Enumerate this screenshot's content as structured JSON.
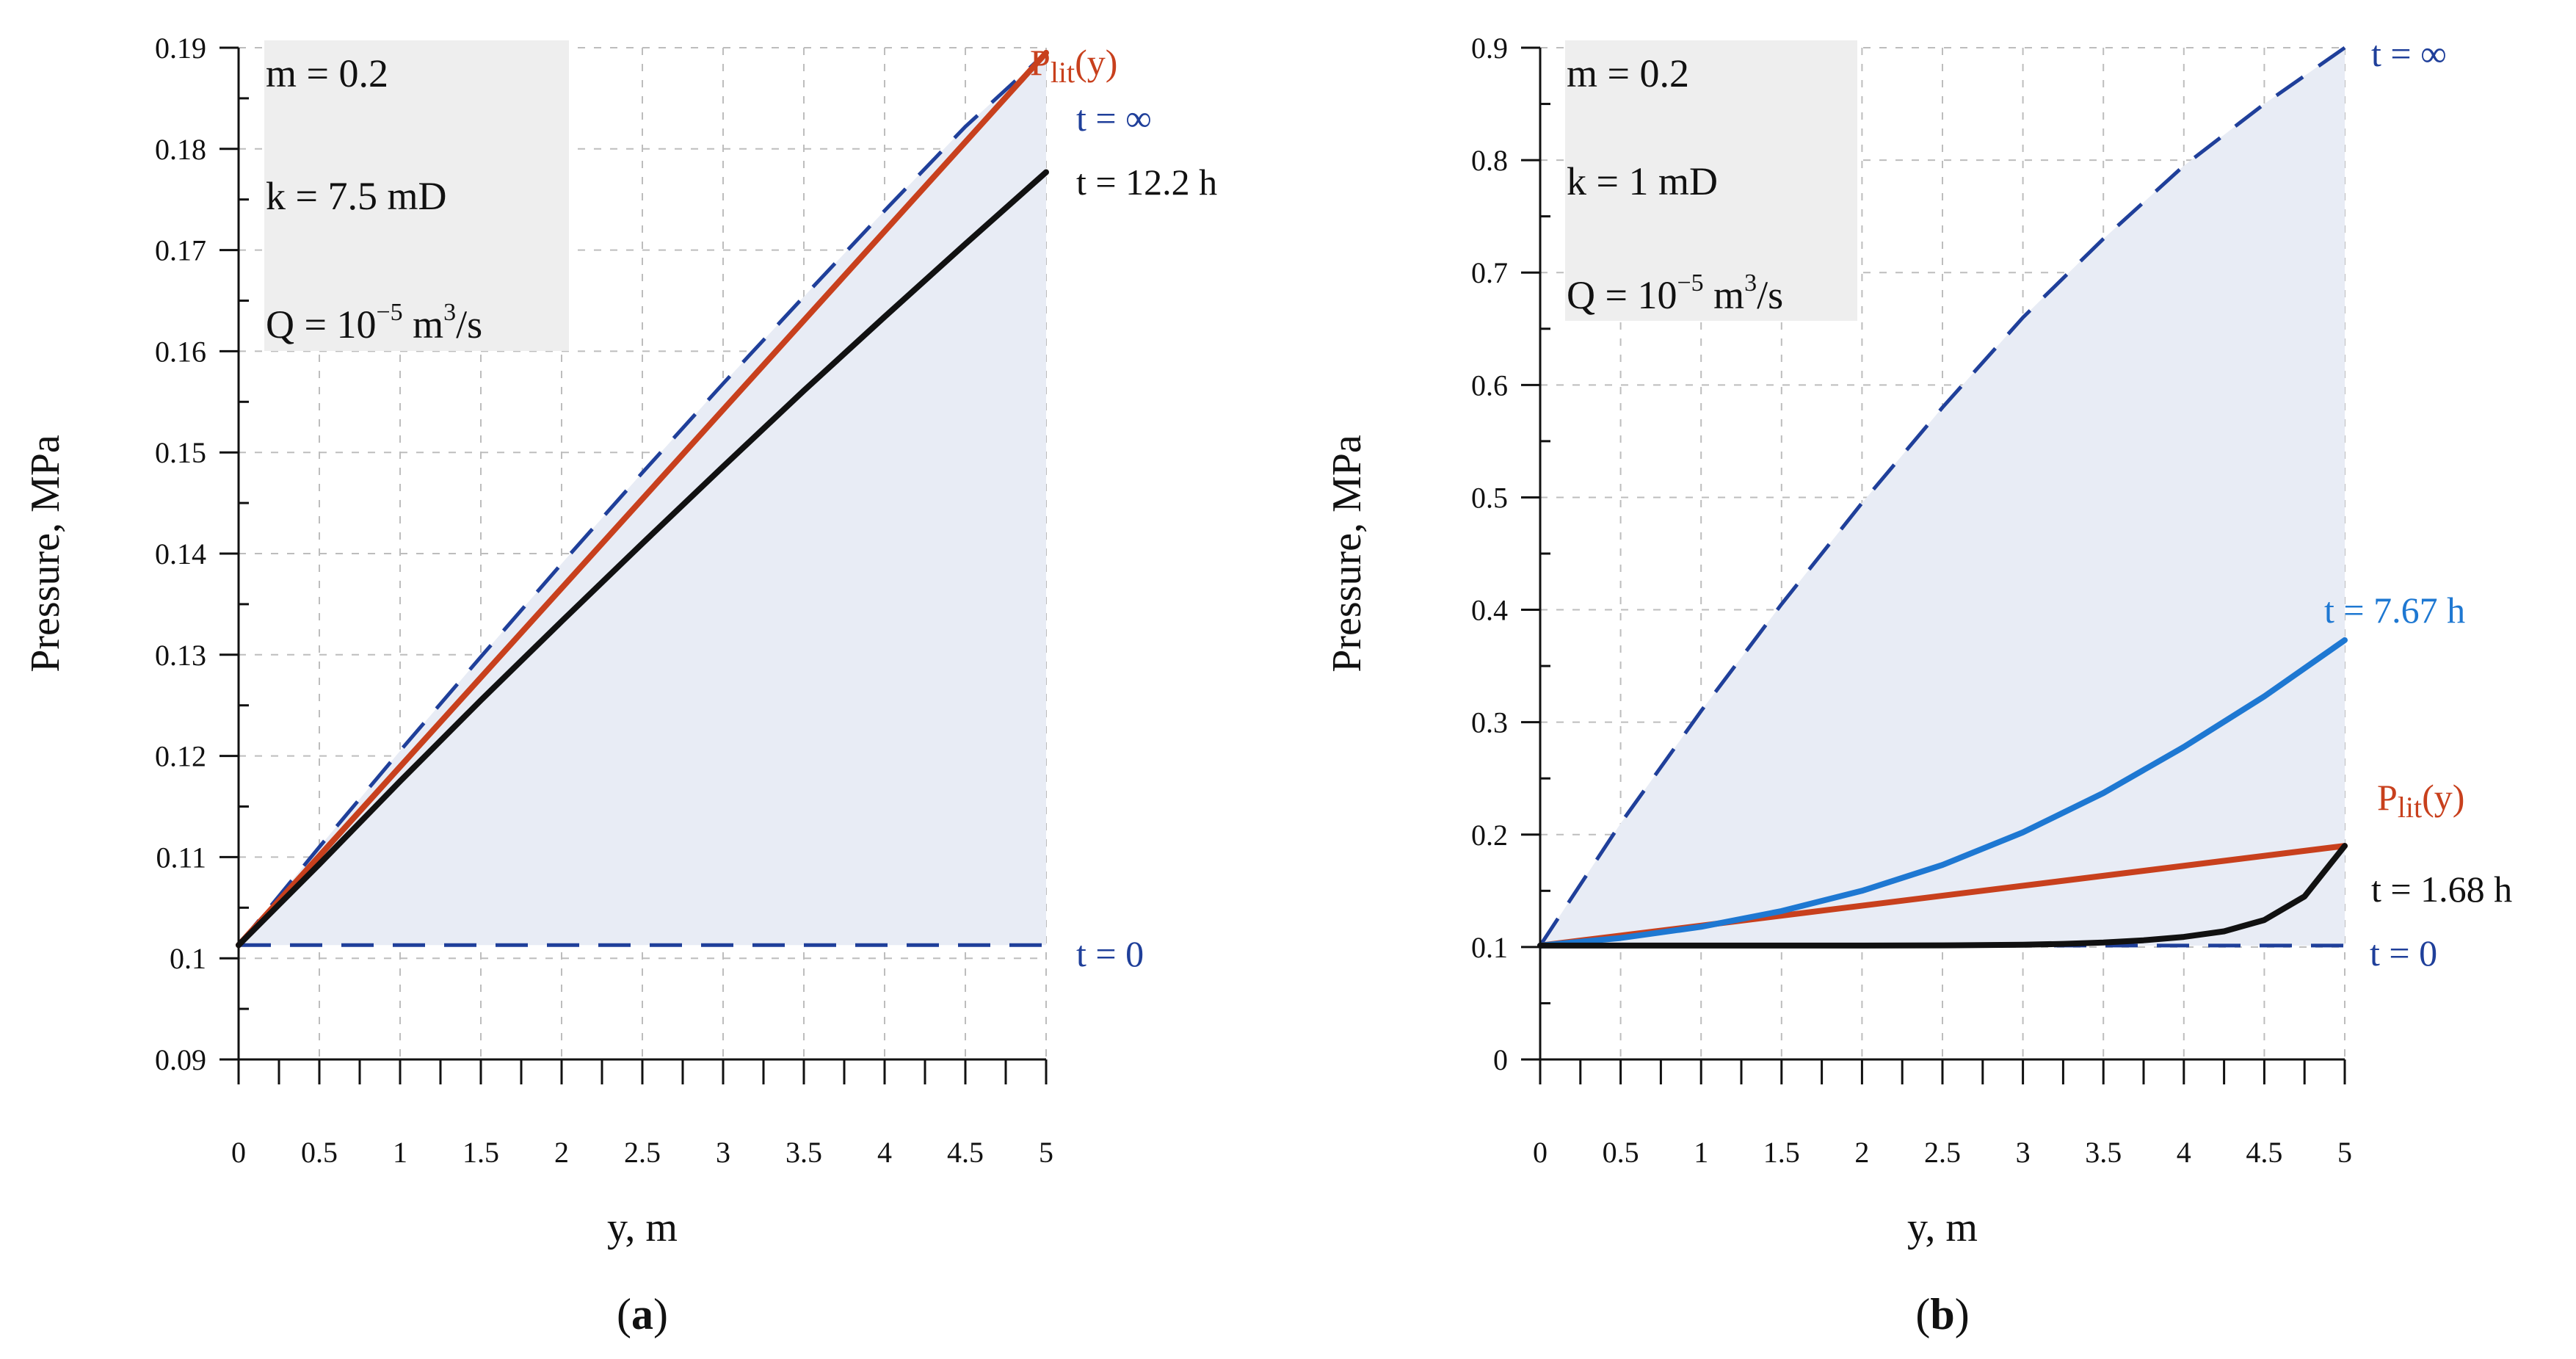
{
  "colors": {
    "t_zero": "#1f3f9a",
    "t_inf": "#1f3f9a",
    "p_lit": "#c8401d",
    "black": "#111111",
    "t_mid_b": "#1e78d2",
    "band": "#e8ecf5",
    "param_box": "#eeeeee",
    "grid": "#bdbdbd"
  },
  "chart_data": [
    {
      "type": "line",
      "panel": "a",
      "panel_label": {
        "open": "(",
        "letter": "a",
        "close": ")"
      },
      "xlabel": "y, m",
      "ylabel": "Pressure, MPa",
      "xlim": [
        0,
        5
      ],
      "ylim": [
        0.09,
        0.19
      ],
      "xticks": [
        0,
        0.5,
        1,
        1.5,
        2,
        2.5,
        3,
        3.5,
        4,
        4.5,
        5
      ],
      "yticks": [
        0.09,
        0.1,
        0.11,
        0.12,
        0.13,
        0.14,
        0.15,
        0.16,
        0.17,
        0.18,
        0.19
      ],
      "params": {
        "m": {
          "text": "m = 0.2"
        },
        "k": {
          "text": "k = 7.5 mD"
        },
        "q": {
          "pre": "Q = 10",
          "sup": "−5",
          "mid": " m",
          "sup2": "3",
          "post": "/s"
        }
      },
      "band_between": [
        "t_zero",
        "t_inf"
      ],
      "series": [
        {
          "key": "t_zero",
          "label": "t = 0",
          "style": "dashed",
          "color_key": "t_zero",
          "x": [
            0,
            5
          ],
          "y": [
            0.1013,
            0.1013
          ]
        },
        {
          "key": "t_inf",
          "label": "t = ∞",
          "style": "dashed",
          "color_key": "t_inf",
          "x": [
            0,
            0.5,
            1,
            1.5,
            2,
            2.5,
            3,
            3.5,
            4,
            4.5,
            5
          ],
          "y": [
            0.1013,
            0.111,
            0.1205,
            0.1298,
            0.139,
            0.148,
            0.1568,
            0.1654,
            0.1739,
            0.1822,
            0.1895
          ]
        },
        {
          "key": "p_lit",
          "label": "P",
          "label_sub": "lit",
          "label_post": "(y)",
          "style": "solid",
          "color_key": "p_lit",
          "x": [
            0,
            5
          ],
          "y": [
            0.1013,
            0.1895
          ]
        },
        {
          "key": "t_mid",
          "label": "t = 12.2 h",
          "style": "solid",
          "color_key": "black",
          "x": [
            0,
            0.5,
            1,
            1.5,
            2,
            2.5,
            3,
            3.5,
            4,
            4.5,
            5
          ],
          "y": [
            0.1013,
            0.1093,
            0.1175,
            0.1255,
            0.1333,
            0.141,
            0.1486,
            0.1561,
            0.1634,
            0.1706,
            0.1777
          ]
        }
      ]
    },
    {
      "type": "line",
      "panel": "b",
      "panel_label": {
        "open": "(",
        "letter": "b",
        "close": ")"
      },
      "xlabel": "y, m",
      "ylabel": "Pressure, MPa",
      "xlim": [
        0,
        5
      ],
      "ylim": [
        0,
        0.9
      ],
      "xticks": [
        0,
        0.5,
        1,
        1.5,
        2,
        2.5,
        3,
        3.5,
        4,
        4.5,
        5
      ],
      "yticks": [
        0,
        0.1,
        0.2,
        0.3,
        0.4,
        0.5,
        0.6,
        0.7,
        0.8,
        0.9
      ],
      "params": {
        "m": {
          "text": "m = 0.2"
        },
        "k": {
          "text": "k = 1 mD"
        },
        "q": {
          "pre": "Q = 10",
          "sup": "−5",
          "mid": " m",
          "sup2": "3",
          "post": "/s"
        }
      },
      "band_between": [
        "t_zero",
        "t_inf"
      ],
      "series": [
        {
          "key": "t_zero",
          "label": "t = 0",
          "style": "dashed",
          "color_key": "t_zero",
          "x": [
            0,
            5
          ],
          "y": [
            0.1013,
            0.1013
          ]
        },
        {
          "key": "t_inf",
          "label": "t = ∞",
          "style": "dashed",
          "color_key": "t_inf",
          "x": [
            0,
            0.5,
            1,
            1.5,
            2,
            2.5,
            3,
            3.5,
            4,
            4.5,
            5
          ],
          "y": [
            0.1013,
            0.21,
            0.31,
            0.405,
            0.495,
            0.58,
            0.66,
            0.73,
            0.795,
            0.85,
            0.9
          ]
        },
        {
          "key": "p_lit",
          "label": "P",
          "label_sub": "lit",
          "label_post": "(y)",
          "style": "solid",
          "color_key": "p_lit",
          "x": [
            0,
            5
          ],
          "y": [
            0.1013,
            0.19
          ]
        },
        {
          "key": "t_mid",
          "label": "t = 7.67 h",
          "style": "solid",
          "color_key": "t_mid_b",
          "x": [
            0,
            0.5,
            1,
            1.5,
            2,
            2.5,
            3,
            3.5,
            4,
            4.5,
            5
          ],
          "y": [
            0.1013,
            0.108,
            0.118,
            0.132,
            0.15,
            0.173,
            0.202,
            0.237,
            0.278,
            0.323,
            0.373
          ]
        },
        {
          "key": "t_early",
          "label": "t = 1.68 h",
          "style": "solid",
          "color_key": "black",
          "x": [
            0,
            0.5,
            1,
            1.5,
            2,
            2.5,
            3,
            3.25,
            3.5,
            3.75,
            4,
            4.25,
            4.5,
            4.75,
            5
          ],
          "y": [
            0.1013,
            0.1013,
            0.1013,
            0.1013,
            0.1013,
            0.1015,
            0.102,
            0.1028,
            0.104,
            0.106,
            0.109,
            0.114,
            0.124,
            0.145,
            0.19
          ]
        }
      ]
    }
  ]
}
